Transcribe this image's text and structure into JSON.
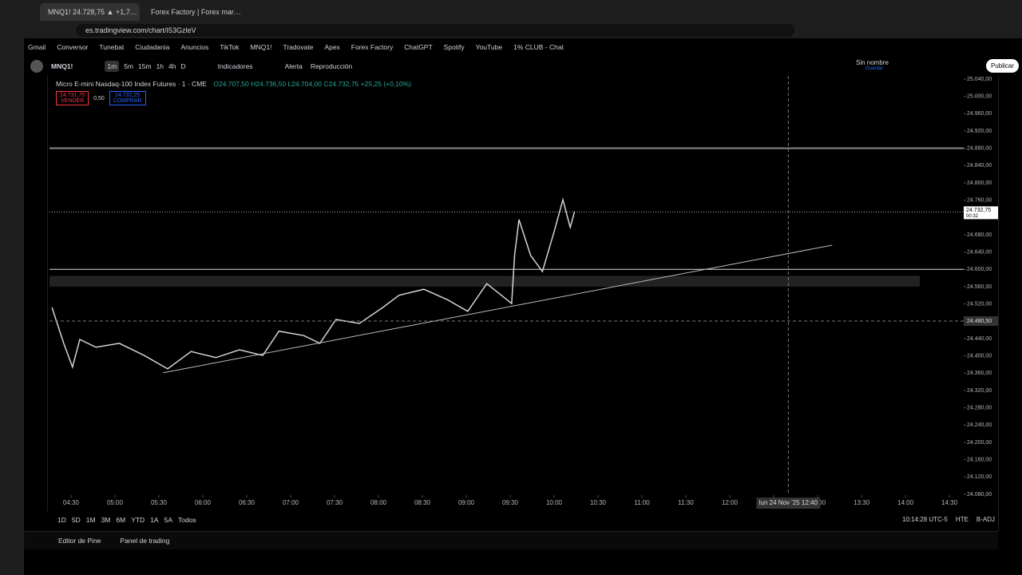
{
  "browser": {
    "tabs": [
      "MNQ1! 24.728,75 ▲ +1,7…",
      "Forex Factory | Forex mar…"
    ],
    "url": "es.tradingview.com/chart/I53GzleV",
    "bookmarks": [
      "Gmail",
      "Conversor",
      "Tunebat",
      "Ciudadania",
      "Anuncios",
      "TikTok",
      "MNQ1!",
      "Tradovate",
      "Apex",
      "Forex Factory",
      "ChatGPT",
      "Spotify",
      "YouTube",
      "1% CLUB - Chat"
    ]
  },
  "toolbar": {
    "symbol": "MNQ1!",
    "intervals": [
      "1m",
      "5m",
      "15m",
      "1h",
      "4h",
      "D"
    ],
    "indicators": "Indicadores",
    "alert": "Alerta",
    "replay": "Reproducción",
    "layout_name": "Sin nombre",
    "save": "Guardar",
    "publish": "Publicar"
  },
  "legend": {
    "title": "Micro E-mini Nasdaq-100 Index Futures · 1 · CME",
    "open": "O24.707,50",
    "high": "H24.736,50",
    "low": "L24.704,00",
    "close": "C24.732,75",
    "change": "+25,25 (+0,10%)",
    "sell_price": "24.731,75",
    "sell": "VENDER",
    "spread": "0,50",
    "buy_price": "24.732,25",
    "buy": "COMPRAR"
  },
  "chart": {
    "type": "line",
    "color": "#d1d4dc",
    "x": [
      257,
      265,
      271,
      276,
      287,
      303,
      320,
      336,
      352,
      369,
      385,
      401,
      412,
      429,
      440,
      451,
      467,
      483,
      494,
      511,
      527,
      541,
      554,
      571,
      573,
      576,
      584,
      592,
      600,
      606,
      611,
      614
    ],
    "values": [
      24512,
      24429,
      24374,
      24438,
      24420,
      24429,
      24401,
      24370,
      24410,
      24396,
      24414,
      24401,
      24457,
      24447,
      24429,
      24484,
      24475,
      24512,
      24540,
      24554,
      24530,
      24503,
      24567,
      24521,
      24632,
      24715,
      24632,
      24595,
      24687,
      24761,
      24697,
      24734
    ],
    "xlim": [
      255.3,
      879.8
    ],
    "ylim": [
      24078,
      25047.4
    ],
    "yticks": [
      {
        "value": 25040,
        "label": "25.040,00"
      },
      {
        "value": 25000,
        "label": "25.000,00"
      },
      {
        "value": 24960,
        "label": "24.960,00"
      },
      {
        "value": 24920,
        "label": "24.920,00"
      },
      {
        "value": 24880,
        "label": "24.880,00"
      },
      {
        "value": 24840,
        "label": "24.840,00"
      },
      {
        "value": 24800,
        "label": "24.800,00"
      },
      {
        "value": 24760,
        "label": "24.760,00"
      },
      {
        "value": 24720,
        "label": "24.720,00"
      },
      {
        "value": 24680,
        "label": "24.680,00"
      },
      {
        "value": 24640,
        "label": "24.640,00"
      },
      {
        "value": 24600,
        "label": "24.600,00"
      },
      {
        "value": 24560,
        "label": "24.560,00"
      },
      {
        "value": 24520,
        "label": "24.520,00"
      },
      {
        "value": 24480,
        "label": "24.480,00"
      },
      {
        "value": 24440,
        "label": "24.440,00"
      },
      {
        "value": 24400,
        "label": "24.400,00"
      },
      {
        "value": 24360,
        "label": "24.360,00"
      },
      {
        "value": 24320,
        "label": "24.320,00"
      },
      {
        "value": 24280,
        "label": "24.280,00"
      },
      {
        "value": 24240,
        "label": "24.240,00"
      },
      {
        "value": 24200,
        "label": "24.200,00"
      },
      {
        "value": 24160,
        "label": "24.160,00"
      },
      {
        "value": 24120,
        "label": "24.120,00"
      },
      {
        "value": 24080,
        "label": "24.080,00"
      }
    ],
    "xticks": [
      {
        "value": 270,
        "label": "04:30"
      },
      {
        "value": 300,
        "label": "05:00"
      },
      {
        "value": 330,
        "label": "05:30"
      },
      {
        "value": 360,
        "label": "06:00"
      },
      {
        "value": 390,
        "label": "06:30"
      },
      {
        "value": 420,
        "label": "07:00"
      },
      {
        "value": 450,
        "label": "07:30"
      },
      {
        "value": 480,
        "label": "08:00"
      },
      {
        "value": 510,
        "label": "08:30"
      },
      {
        "value": 540,
        "label": "09:00"
      },
      {
        "value": 570,
        "label": "09:30"
      },
      {
        "value": 600,
        "label": "10:00"
      },
      {
        "value": 630,
        "label": "10:30"
      },
      {
        "value": 660,
        "label": "11:00"
      },
      {
        "value": 690,
        "label": "11:30"
      },
      {
        "value": 720,
        "label": "12:00"
      },
      {
        "value": 750,
        "label": "12:30"
      },
      {
        "value": 780,
        "label": "13:00"
      },
      {
        "value": 810,
        "label": "13:30"
      },
      {
        "value": 840,
        "label": "14:00"
      },
      {
        "value": 870,
        "label": "14:30"
      }
    ],
    "horizontal_line": 24880,
    "support_line": 24600,
    "zone": [
      24560,
      24585
    ],
    "last_price": {
      "value": 24732.75,
      "label": "24.732,75",
      "countdown": "00:32"
    },
    "trendline": {
      "x": [
        333,
        790
      ],
      "values": [
        24361,
        24656
      ]
    },
    "crosshair": {
      "x": 760,
      "x_label": "lun 24 Nov '25   12:40",
      "value": 24480.5,
      "label": "24.480,50"
    }
  },
  "bottom": {
    "ranges": [
      "1D",
      "5D",
      "1M",
      "3M",
      "6M",
      "YTD",
      "1A",
      "5A",
      "Todos"
    ],
    "clock": "10:14:28 UTC-5",
    "session": "HTE",
    "adjust": "B-ADJ",
    "panels": [
      "Editor de Pine",
      "Panel de trading"
    ]
  }
}
